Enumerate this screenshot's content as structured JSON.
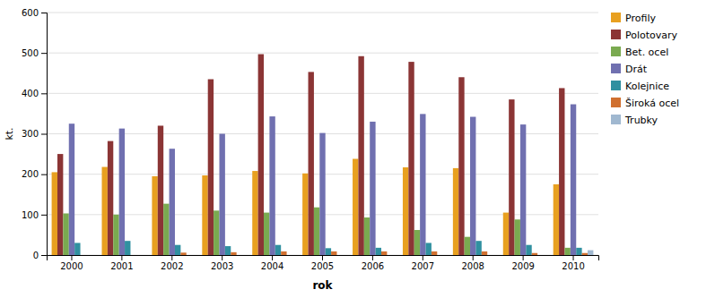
{
  "chart_data": {
    "type": "bar",
    "x_label": "rok",
    "y_label": "kt.",
    "categories": [
      "2000",
      "2001",
      "2002",
      "2003",
      "2004",
      "2005",
      "2006",
      "2007",
      "2008",
      "2009",
      "2010"
    ],
    "series": [
      {
        "name": "Profily",
        "color": "#E8A020",
        "values": [
          205,
          218,
          195,
          197,
          208,
          202,
          238,
          217,
          215,
          105,
          175
        ]
      },
      {
        "name": "Polotovary",
        "color": "#8B3535",
        "values": [
          250,
          282,
          320,
          435,
          497,
          453,
          492,
          478,
          440,
          385,
          413
        ]
      },
      {
        "name": "Bet. ocel",
        "color": "#7AAA50",
        "values": [
          103,
          100,
          127,
          110,
          105,
          118,
          93,
          62,
          45,
          88,
          18
        ]
      },
      {
        "name": "Drát",
        "color": "#7070B0",
        "values": [
          325,
          313,
          263,
          300,
          343,
          302,
          330,
          349,
          342,
          323,
          373
        ]
      },
      {
        "name": "Kolejnice",
        "color": "#3090A0",
        "values": [
          30,
          35,
          25,
          22,
          25,
          17,
          18,
          30,
          35,
          25,
          18
        ]
      },
      {
        "name": "Široká ocel",
        "color": "#D07030",
        "values": [
          0,
          0,
          6,
          7,
          9,
          9,
          9,
          9,
          9,
          5,
          5
        ]
      },
      {
        "name": "Trubky",
        "color": "#A0B8D0",
        "values": [
          0,
          0,
          0,
          0,
          0,
          0,
          0,
          0,
          0,
          0,
          12
        ]
      }
    ],
    "ylim": [
      0,
      600
    ],
    "yticks": [
      0,
      100,
      200,
      300,
      400,
      500,
      600
    ],
    "grid": true,
    "legend": "top-right"
  }
}
